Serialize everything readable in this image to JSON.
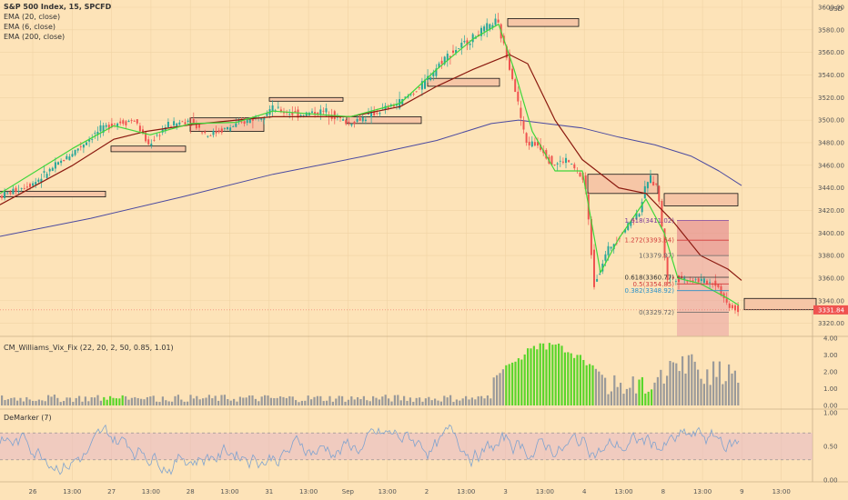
{
  "chart_data": [
    {
      "type": "candlestick",
      "title": "S&P 500 Index, 15, SPCFD",
      "currency": "USD",
      "indicators": [
        "EMA (20, close)",
        "EMA (6, close)",
        "EMA (200, close)"
      ],
      "ylim": [
        3310,
        3600
      ],
      "y_ticks": [
        "3600.00",
        "3580.00",
        "3560.00",
        "3540.00",
        "3520.00",
        "3500.00",
        "3480.00",
        "3460.00",
        "3440.00",
        "3420.00",
        "3400.00",
        "3380.00",
        "3360.00",
        "3340.00",
        "3320.00"
      ],
      "last_price": "3331.84",
      "price_path": [
        [
          0,
          3432
        ],
        [
          40,
          3445
        ],
        [
          80,
          3470
        ],
        [
          110,
          3490
        ],
        [
          125,
          3497
        ],
        [
          150,
          3500
        ],
        [
          165,
          3478
        ],
        [
          185,
          3495
        ],
        [
          210,
          3500
        ],
        [
          230,
          3487
        ],
        [
          260,
          3495
        ],
        [
          290,
          3505
        ],
        [
          300,
          3510
        ],
        [
          330,
          3505
        ],
        [
          360,
          3508
        ],
        [
          385,
          3497
        ],
        [
          410,
          3505
        ],
        [
          440,
          3515
        ],
        [
          465,
          3530
        ],
        [
          490,
          3555
        ],
        [
          520,
          3572
        ],
        [
          548,
          3588
        ],
        [
          565,
          3540
        ],
        [
          580,
          3480
        ],
        [
          595,
          3478
        ],
        [
          610,
          3460
        ],
        [
          625,
          3465
        ],
        [
          645,
          3445
        ],
        [
          655,
          3355
        ],
        [
          670,
          3385
        ],
        [
          690,
          3405
        ],
        [
          705,
          3420
        ],
        [
          715,
          3450
        ],
        [
          725,
          3440
        ],
        [
          735,
          3360
        ],
        [
          745,
          3360
        ],
        [
          770,
          3358
        ],
        [
          790,
          3355
        ],
        [
          800,
          3338
        ],
        [
          812,
          3332
        ]
      ],
      "ema20_path": [
        [
          0,
          3425
        ],
        [
          80,
          3460
        ],
        [
          125,
          3483
        ],
        [
          160,
          3490
        ],
        [
          210,
          3496
        ],
        [
          260,
          3500
        ],
        [
          300,
          3503
        ],
        [
          385,
          3503
        ],
        [
          440,
          3512
        ],
        [
          480,
          3530
        ],
        [
          520,
          3545
        ],
        [
          560,
          3558
        ],
        [
          580,
          3550
        ],
        [
          610,
          3500
        ],
        [
          640,
          3465
        ],
        [
          680,
          3440
        ],
        [
          710,
          3435
        ],
        [
          740,
          3410
        ],
        [
          770,
          3380
        ],
        [
          800,
          3368
        ],
        [
          815,
          3358
        ]
      ],
      "ema6_path": [
        [
          0,
          3435
        ],
        [
          80,
          3475
        ],
        [
          125,
          3495
        ],
        [
          165,
          3487
        ],
        [
          210,
          3497
        ],
        [
          260,
          3498
        ],
        [
          300,
          3508
        ],
        [
          385,
          3503
        ],
        [
          440,
          3515
        ],
        [
          480,
          3545
        ],
        [
          520,
          3572
        ],
        [
          548,
          3585
        ],
        [
          565,
          3545
        ],
        [
          585,
          3490
        ],
        [
          610,
          3455
        ],
        [
          640,
          3455
        ],
        [
          660,
          3365
        ],
        [
          680,
          3395
        ],
        [
          710,
          3430
        ],
        [
          730,
          3400
        ],
        [
          745,
          3360
        ],
        [
          770,
          3355
        ],
        [
          800,
          3342
        ],
        [
          812,
          3336
        ]
      ],
      "ema200_path": [
        [
          0,
          3397
        ],
        [
          100,
          3413
        ],
        [
          200,
          3432
        ],
        [
          300,
          3452
        ],
        [
          400,
          3468
        ],
        [
          480,
          3482
        ],
        [
          540,
          3497
        ],
        [
          570,
          3500
        ],
        [
          600,
          3497
        ],
        [
          640,
          3493
        ],
        [
          680,
          3485
        ],
        [
          720,
          3478
        ],
        [
          760,
          3468
        ],
        [
          790,
          3455
        ],
        [
          815,
          3442
        ]
      ],
      "supply_demand_zones": [
        [
          -2,
          3437,
          116,
          3432
        ],
        [
          122,
          3477,
          204,
          3472
        ],
        [
          209,
          3502,
          290,
          3490
        ],
        [
          296,
          3520,
          377,
          3517
        ],
        [
          381,
          3503,
          463,
          3497
        ],
        [
          470,
          3537,
          549,
          3530
        ],
        [
          558,
          3590,
          636,
          3583
        ],
        [
          646,
          3452,
          723,
          3435
        ],
        [
          730,
          3435,
          811,
          3424
        ],
        [
          818,
          3342,
          897,
          3332
        ]
      ],
      "fib_levels": [
        {
          "label": "1.618(3411.02)",
          "value": 3411.02,
          "color": "#7a3a9a"
        },
        {
          "label": "1.272(3393.64)",
          "value": 3393.64,
          "color": "#d23b3b"
        },
        {
          "label": "1(3379.97)",
          "value": 3379.97,
          "color": "#666666"
        },
        {
          "label": "0.618(3360.77)",
          "value": 3360.77,
          "color": "#333333"
        },
        {
          "label": "0.5(3354.85)",
          "value": 3354.85,
          "color": "#d23b3b"
        },
        {
          "label": "0.382(3348.92)",
          "value": 3348.92,
          "color": "#2a8fc8"
        },
        {
          "label": "0(3329.72)",
          "value": 3329.72,
          "color": "#666666"
        }
      ]
    },
    {
      "type": "bar",
      "title": "CM_Williams_Vix_Fix (22, 20, 2, 50, 0.85, 1.01)",
      "ylim": [
        0,
        4
      ],
      "y_ticks": [
        "4.00",
        "3.00",
        "2.00",
        "1.00",
        "0.00"
      ],
      "spike_color": "#5ad62b",
      "normal_color": "#9a9a9a"
    },
    {
      "type": "line",
      "title": "DeMarker (7)",
      "ylim": [
        0,
        1
      ],
      "y_ticks": [
        "1.00",
        "0.50",
        "0.00"
      ],
      "band": [
        0.3,
        0.7
      ],
      "line_color": "#7fa3cf"
    }
  ],
  "x_ticks": [
    "26",
    "13:00",
    "27",
    "13:00",
    "28",
    "13:00",
    "31",
    "13:00",
    "Sep",
    "13:00",
    "2",
    "13:00",
    "3",
    "13:00",
    "4",
    "13:00",
    "8",
    "13:00",
    "9",
    "13:00"
  ],
  "colors": {
    "up": "#26a69a",
    "down": "#ef5350",
    "ema20": "#8b1a10",
    "ema6": "#3fd63a",
    "ema200": "#4b4aa0",
    "background": "#fde3b8"
  }
}
